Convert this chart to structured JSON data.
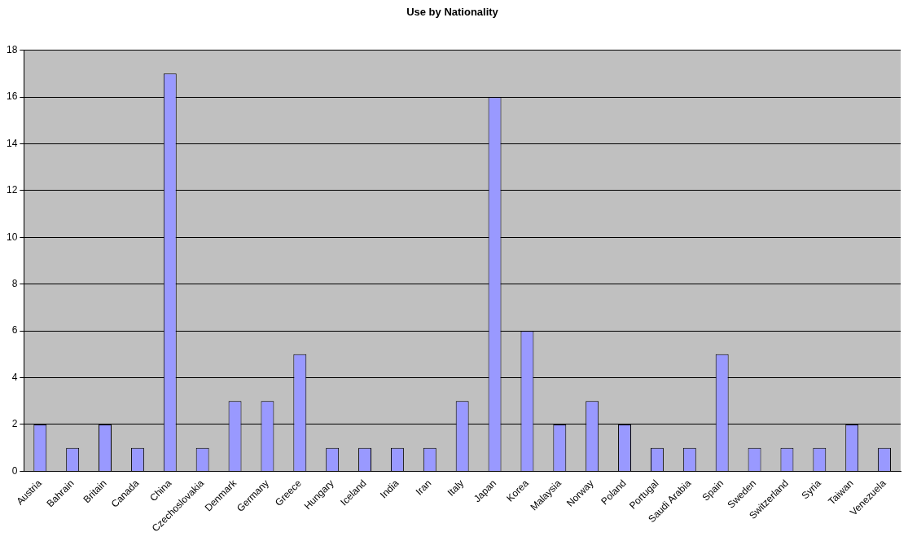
{
  "chart_data": {
    "type": "bar",
    "title": "Use by Nationality",
    "categories": [
      "Austria",
      "Bahrain",
      "Britain",
      "Canada",
      "China",
      "Czechoslovakia",
      "Denmark",
      "Germany",
      "Greece",
      "Hungary",
      "Iceland",
      "India",
      "Iran",
      "Italy",
      "Japan",
      "Korea",
      "Malaysia",
      "Norway",
      "Poland",
      "Portugal",
      "Saudi Arabia",
      "Spain",
      "Sweden",
      "Switzerland",
      "Syria",
      "Taiwan",
      "Venezuela"
    ],
    "values": [
      2,
      1,
      2,
      1,
      17,
      1,
      3,
      3,
      5,
      1,
      1,
      1,
      1,
      3,
      16,
      6,
      2,
      3,
      2,
      1,
      1,
      5,
      1,
      1,
      1,
      2,
      1
    ],
    "color": "#9999ff",
    "ylim": [
      0,
      18
    ],
    "yticks": [
      0,
      2,
      4,
      6,
      8,
      10,
      12,
      14,
      16,
      18
    ],
    "grid": "y"
  }
}
